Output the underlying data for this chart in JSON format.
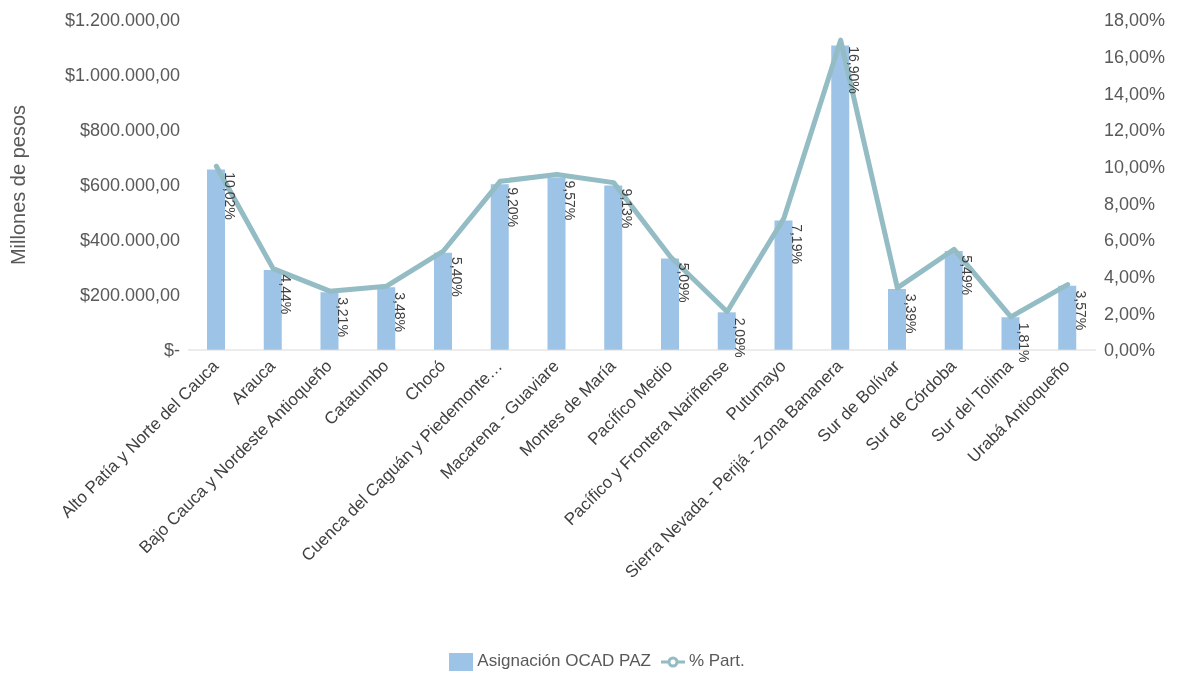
{
  "chart_data": {
    "type": "bar",
    "ylabel": "Millones de pesos",
    "categories": [
      "Alto Patía y Norte del Cauca",
      "Arauca",
      "Bajo Cauca y Nordeste Antioqueño",
      "Catatumbo",
      "Chocó",
      "Cuenca del Caguán y Piedemonte…",
      "Macarena - Guaviare",
      "Montes de María",
      "Pacífico Medio",
      "Pacífico y Frontera Nariñense",
      "Putumayo",
      "Sierra Nevada - Perijá - Zona Bananera",
      "Sur de Bolívar",
      "Sur de Córdoba",
      "Sur del Tolima",
      "Urabá Antioqueño"
    ],
    "series": [
      {
        "name": "Asignación OCAD PAZ",
        "color": "#9dc3e6",
        "values": [
          656000,
          291000,
          210000,
          228000,
          354000,
          603000,
          627000,
          598000,
          333000,
          137000,
          471000,
          1107000,
          222000,
          360000,
          119000,
          234000
        ]
      },
      {
        "name": "% Part.",
        "type": "line",
        "axis": "y2",
        "color": "#93bcc4",
        "marker": "none",
        "values": [
          10.02,
          4.44,
          3.21,
          3.48,
          5.4,
          9.2,
          9.57,
          9.13,
          5.09,
          2.09,
          7.19,
          16.9,
          3.39,
          5.49,
          1.81,
          3.57
        ],
        "value_labels": [
          "10,02%",
          "4,44%",
          "3,21%",
          "3,48%",
          "5,40%",
          "9,20%",
          "9,57%",
          "9,13%",
          "5,09%",
          "2,09%",
          "7,19%",
          "16,90%",
          "3,39%",
          "5,49%",
          "1,81%",
          "3,57%"
        ]
      }
    ],
    "ylim": [
      0,
      1200000
    ],
    "yticks": [
      {
        "value": 0,
        "label": "$-"
      },
      {
        "value": 200000,
        "label": "$200.000,00"
      },
      {
        "value": 400000,
        "label": "$400.000,00"
      },
      {
        "value": 600000,
        "label": "$600.000,00"
      },
      {
        "value": 800000,
        "label": "$800.000,00"
      },
      {
        "value": 1000000,
        "label": "$1.000.000,00"
      },
      {
        "value": 1200000,
        "label": "$1.200.000,00"
      }
    ],
    "y2lim": [
      0,
      18
    ],
    "y2ticks": [
      {
        "value": 0,
        "label": "0,00%"
      },
      {
        "value": 2,
        "label": "2,00%"
      },
      {
        "value": 4,
        "label": "4,00%"
      },
      {
        "value": 6,
        "label": "6,00%"
      },
      {
        "value": 8,
        "label": "8,00%"
      },
      {
        "value": 10,
        "label": "10,00%"
      },
      {
        "value": 12,
        "label": "12,00%"
      },
      {
        "value": 14,
        "label": "14,00%"
      },
      {
        "value": 16,
        "label": "16,00%"
      },
      {
        "value": 18,
        "label": "18,00%"
      }
    ],
    "grid": false,
    "legend": "bottom"
  }
}
